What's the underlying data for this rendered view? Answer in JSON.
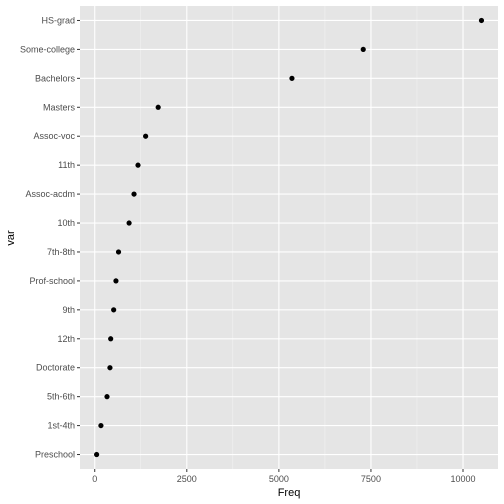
{
  "chart_data": {
    "type": "scatter",
    "xlabel": "Freq",
    "ylabel": "var",
    "xlim": [
      -400,
      10950
    ],
    "x_ticks": [
      0,
      2500,
      5000,
      7500,
      10000
    ],
    "x_tick_labels": [
      "0",
      "2500",
      "5000",
      "7500",
      "10000"
    ],
    "grid": true,
    "categories": [
      "HS-grad",
      "Some-college",
      "Bachelors",
      "Masters",
      "Assoc-voc",
      "11th",
      "Assoc-acdm",
      "10th",
      "7th-8th",
      "Prof-school",
      "9th",
      "12th",
      "Doctorate",
      "5th-6th",
      "1st-4th",
      "Preschool"
    ],
    "values": [
      10501,
      7291,
      5355,
      1723,
      1382,
      1175,
      1067,
      933,
      646,
      576,
      514,
      433,
      413,
      333,
      168,
      51
    ]
  },
  "colors": {
    "panel_background": "#e5e5e5",
    "grid_major": "#ffffff",
    "point": "#000000",
    "tick_label": "#4d4d4d"
  }
}
